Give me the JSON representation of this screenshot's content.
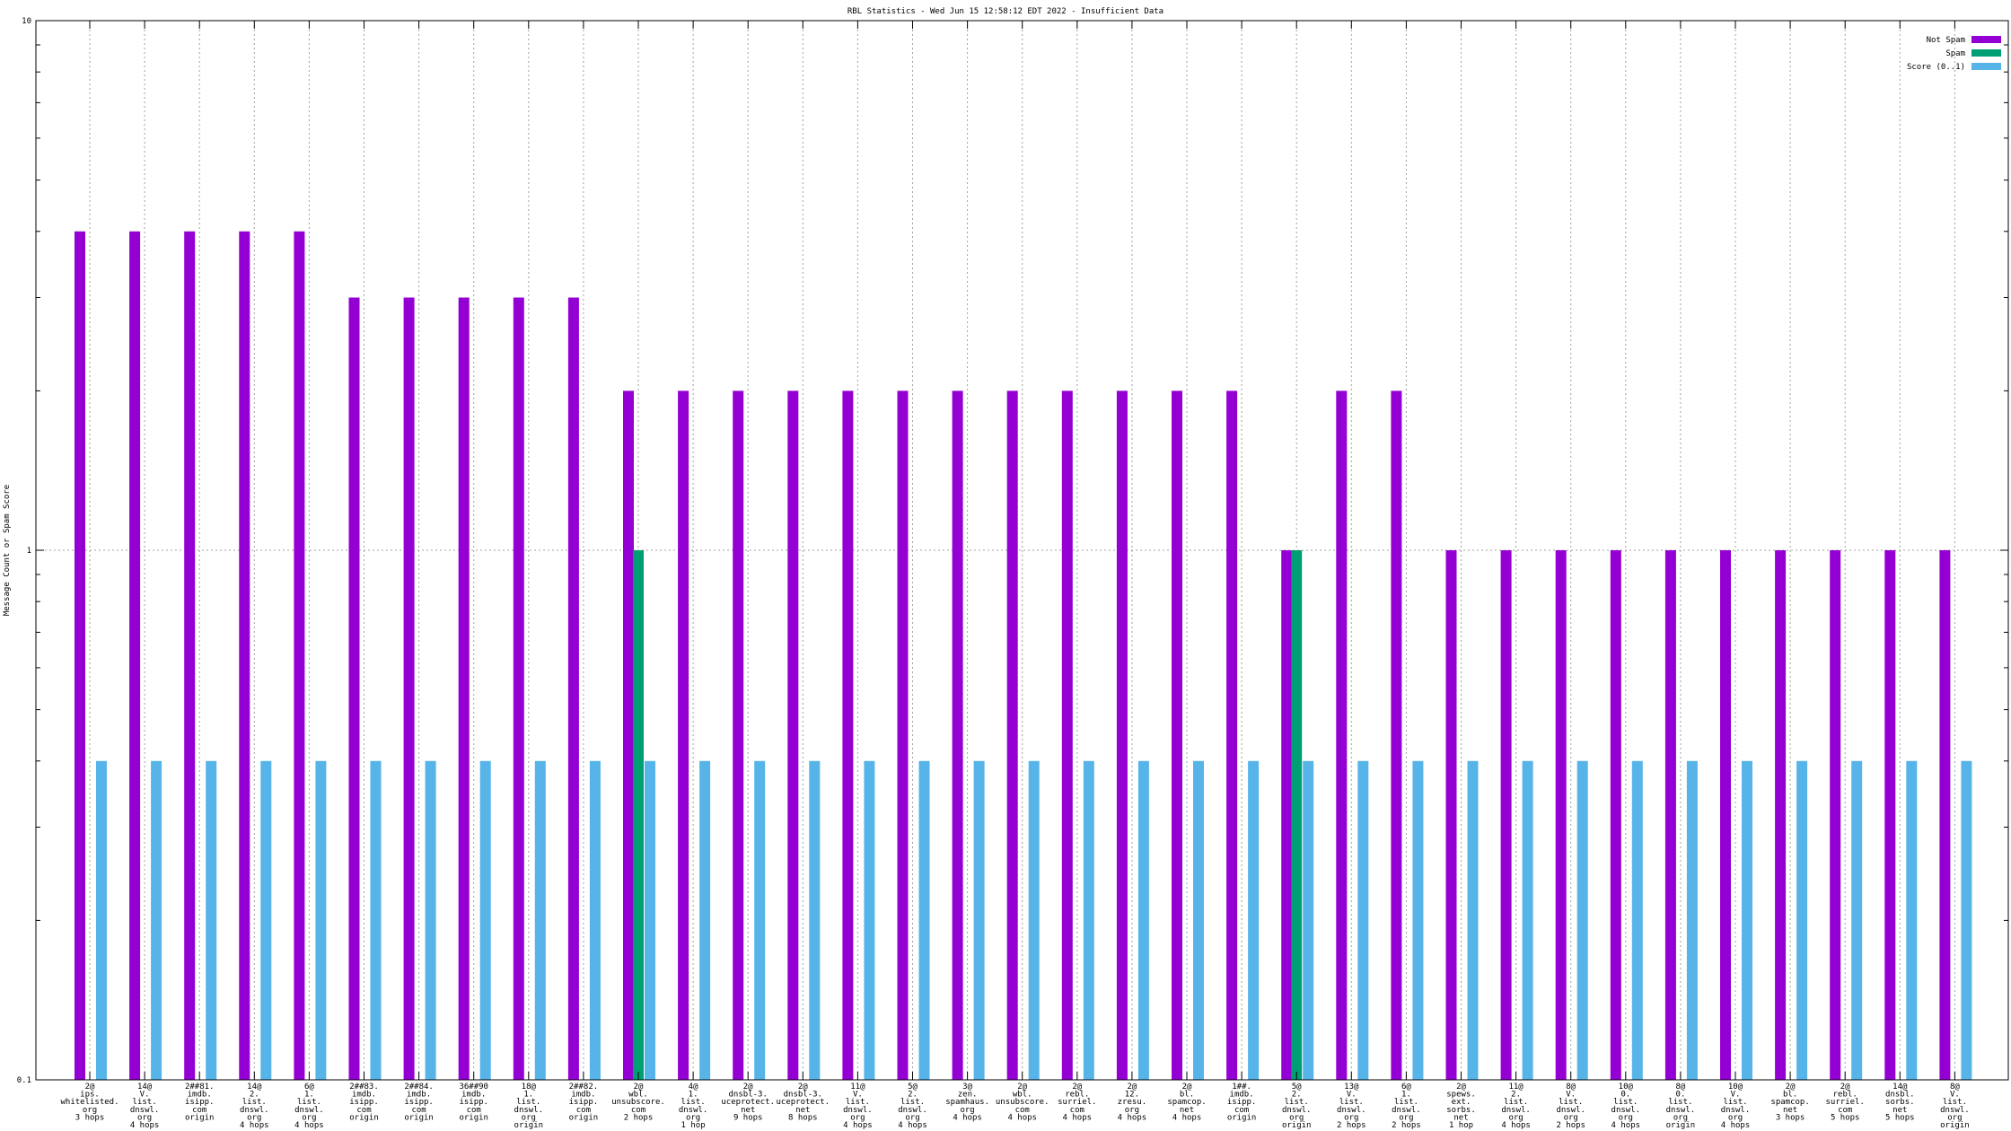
{
  "chart_data": {
    "type": "bar",
    "title": "RBL Statistics - Wed Jun 15 12:58:12 EDT 2022 - Insufficient Data",
    "ylabel": "Message Count or Spam Score",
    "xlabel": "",
    "yscale": "log",
    "ylim": [
      0.1,
      10
    ],
    "ytick_labels": [
      "10",
      "1",
      "0.1"
    ],
    "grid": true,
    "legend_position": "top-right",
    "categories": [
      "2@\nips.\nwhitelisted.\norg\n3 hops",
      "14@\nV.\nlist.\ndnswl.\norg\n4 hops",
      "2##81.\nimdb.\nisipp.\ncom\norigin",
      "14@\n2.\nlist.\ndnswl.\norg\n4 hops",
      "6@\n1.\nlist.\ndnswl.\norg\n4 hops",
      "2##83.\nimdb.\nisipp.\ncom\norigin",
      "2##84.\nimdb.\nisipp.\ncom\norigin",
      "36##90\nimdb.\nisipp.\ncom\norigin",
      "18@\n1.\nlist.\ndnswl.\norg\norigin",
      "2##82.\nimdb.\nisipp.\ncom\norigin",
      "2@\nwbl.\nunsubscore.\ncom\n2 hops",
      "4@\n1.\nlist.\ndnswl.\norg\n1 hop",
      "2@\ndnsbl-3.\nuceprotect.\nnet\n9 hops",
      "2@\ndnsbl-3.\nuceprotect.\nnet\n8 hops",
      "11@\nV.\nlist.\ndnswl.\norg\n4 hops",
      "5@\n2.\nlist.\ndnswl.\norg\n4 hops",
      "3@\nzen.\nspamhaus.\norg\n4 hops",
      "2@\nwbl.\nunsubscore.\ncom\n4 hops",
      "2@\nrebl.\nsurriel.\ncom\n4 hops",
      "2@\n12.\nzresu.\norg\n4 hops",
      "2@\nbl.\nspamcop.\nnet\n4 hops",
      "1##.\nimdb.\nisipp.\ncom\norigin",
      "5@\n2.\nlist.\ndnswl.\norg\norigin",
      "13@\nV.\nlist.\ndnswl.\norg\n2 hops",
      "6@\n1.\nlist.\ndnswl.\norg\n2 hops",
      "2@\nspews.\next.\nsorbs.\nnet\n1 hop",
      "11@\n2.\nlist.\ndnswl.\norg\n4 hops",
      "8@\nV.\nlist.\ndnswl.\norg\n2 hops",
      "10@\n0.\nlist.\ndnswl.\norg\n4 hops",
      "8@\n0.\nlist.\ndnswl.\norg\norigin",
      "10@\nV.\nlist.\ndnswl.\norg\n4 hops",
      "2@\nbl.\nspamcop.\nnet\n3 hops",
      "2@\nrebl.\nsurriel.\ncom\n5 hops",
      "14@\ndnsbl.\nsorbs.\nnet\n5 hops",
      "8@\nV.\nlist.\ndnswl.\norg\norigin"
    ],
    "series": [
      {
        "name": "Not Spam",
        "color": "#9400d3",
        "values": [
          4,
          4,
          4,
          4,
          4,
          3,
          3,
          3,
          3,
          3,
          2,
          2,
          2,
          2,
          2,
          2,
          2,
          2,
          2,
          2,
          2,
          2,
          1,
          2,
          2,
          1,
          1,
          1,
          1,
          1,
          1,
          1,
          1,
          1,
          1
        ]
      },
      {
        "name": "Spam",
        "color": "#009e73",
        "values": [
          null,
          null,
          null,
          null,
          null,
          null,
          null,
          null,
          null,
          null,
          1,
          null,
          null,
          null,
          null,
          null,
          null,
          null,
          null,
          null,
          null,
          null,
          1,
          null,
          null,
          null,
          null,
          null,
          null,
          null,
          null,
          null,
          null,
          null,
          null
        ]
      },
      {
        "name": "Score (0..1)",
        "color": "#56b4e9",
        "values": [
          0.4,
          0.4,
          0.4,
          0.4,
          0.4,
          0.4,
          0.4,
          0.4,
          0.4,
          0.4,
          0.4,
          0.4,
          0.4,
          0.4,
          0.4,
          0.4,
          0.4,
          0.4,
          0.4,
          0.4,
          0.4,
          0.4,
          0.4,
          0.4,
          0.4,
          0.4,
          0.4,
          0.4,
          0.4,
          0.4,
          0.4,
          0.4,
          0.4,
          0.4,
          0.4
        ]
      }
    ]
  }
}
